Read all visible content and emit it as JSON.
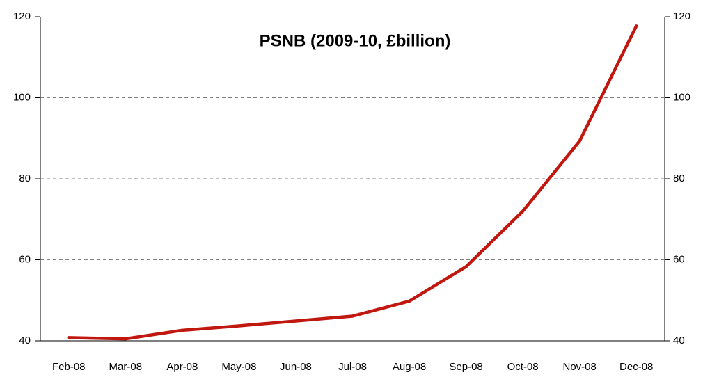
{
  "chart_data": {
    "type": "line",
    "title": "PSNB (2009-10, £billion)",
    "categories": [
      "Feb-08",
      "Mar-08",
      "Apr-08",
      "May-08",
      "Jun-08",
      "Jul-08",
      "Aug-08",
      "Sep-08",
      "Oct-08",
      "Nov-08",
      "Dec-08"
    ],
    "series": [
      {
        "name": "PSNB",
        "color": "#c0170f",
        "values": [
          40.8,
          40.5,
          42.6,
          43.7,
          44.9,
          46.1,
          49.8,
          58.3,
          72.0,
          89.3,
          117.7
        ]
      }
    ],
    "ylim": [
      40,
      120
    ],
    "yticks": [
      40,
      60,
      80,
      100,
      120
    ],
    "y2lim": [
      40,
      120
    ],
    "y2ticks": [
      40,
      60,
      80,
      100,
      120
    ],
    "grid": true
  }
}
